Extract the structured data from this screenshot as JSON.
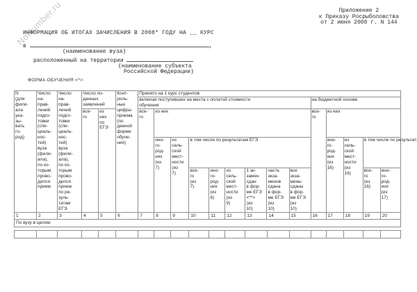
{
  "page": {
    "watermark": "NoNumber.ru",
    "appendix_note": [
      "Приложение 2",
      "к Приказу Росрыболовства",
      "от 2 июня 2008 г. N 144"
    ],
    "title": "ИНФОРМАЦИЯ ОБ ИТОГАХ ЗАЧИСЛЕНИЯ В 2008* ГОДУ НА __ КУРС",
    "form": {
      "in_prefix": "в",
      "comma": ",",
      "university_hint": "(наименование вуза)",
      "located_label": "расположенный на территории",
      "subject_hint_line1": "(наименование субъекта",
      "subject_hint_line2": "Российской Федерации)",
      "education_form_label": "ФОРМА ОБУЧЕНИЯ <*>:"
    }
  },
  "table": {
    "headers": {
      "col1": "N\n(для\nфили-\nала\nука-\nзы-\nвать\nго-\nрод)",
      "col2": "Число\nна-\nправ-\nлений\nподго-\nтовки\n(спе-\nциаль-\nнос-\nтей)\nвуза\n(фили-\nала),\nпо ко-\nторым\nпрово-\nдился\nприем",
      "col3": "Число\nна-\nправ-\nлений\nподго-\nтовки\n(спе-\nциаль-\nнос-\nтей)\nвуза\n(фили-\nала),\nпо ко-\nторым\nпрово-\nдился\nприем\nпо ре-\nзуль-\nтатам\nЕГЭ",
      "applications_group": "Число по-\nданных\nзаявлений",
      "col4": "все-\nго",
      "col5": "из\nних\nпо\nЕГЭ",
      "col6": "Конт-\nроль-\nные\nцифры\nприема\n(по\nданной\nформе\nобуче-\nния)",
      "enrolled_group": "Принято на 1 курс студентов",
      "paid_group": "включая поступивших на места с оплатой стоимости\nобучения",
      "budget_group": "на бюджетной основе",
      "col7": "все-\nго",
      "of_them_paid": "из них",
      "col8": "ино-\nго-\nрод-\nних\n(из\n7)",
      "col9": "из\nсель-\nской\nмест-\nности\n(из\n7)",
      "ege_paid_group": "в том числе по результатам ЕГЭ",
      "col10": "все-\nго\n(из\n7)",
      "col11": "ино-\nго-\nрод-\nних\n(из\n8)",
      "col12": "из\nсель-\nской\nмест-\nности\n(из\n9)",
      "col13": "1 эк-\nзамен\nсдан\nв фор-\nме ЕГЭ\n<**>\n(из\n10)",
      "col14": "часть\nэкза-\nменов\nсдана\nв фор-\nме ЕГЭ\n(из\n10)",
      "col15": "все\nэкза-\nмены\nсданы\nв фор-\nме ЕГЭ\n(из\n10)",
      "col16": "все-\nго",
      "of_them_budget": "из них",
      "col17": "ино-\nго-\nрод-\nних\n(из\n16)",
      "col18": "из\nсель-\nской\nмест-\nности\n(из\n16)",
      "ege_budget_group": "в том числе по результатам ЕГЭ",
      "col19": "все-\nго\n(из\n16)",
      "col20": "ино-\nго-\nрод-\nних\n(из\n17)"
    },
    "column_numbers": [
      "1",
      "2",
      "3",
      "4",
      "5",
      "6",
      "7",
      "8",
      "9",
      "10",
      "11",
      "12",
      "13",
      "14",
      "15",
      "16",
      "17",
      "18",
      "19",
      "20"
    ],
    "summary_row_label": "По вузу в целом:"
  },
  "colors": {
    "background": "#ffffff",
    "text": "#2a2a2a",
    "table_border": "#8f8f8f",
    "watermark": "#c9c9c9"
  }
}
